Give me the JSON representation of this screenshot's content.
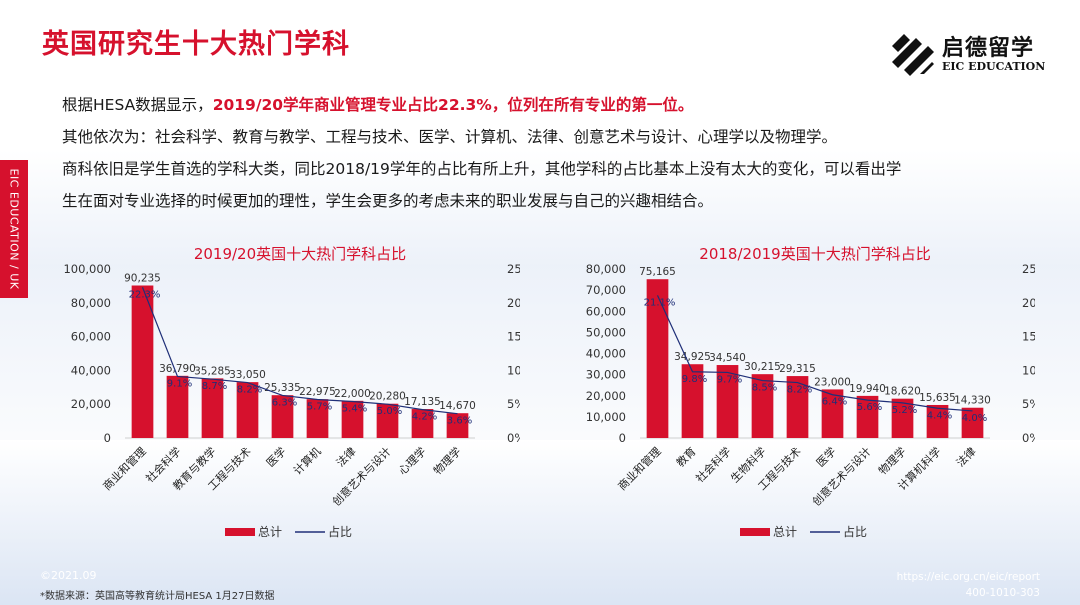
{
  "title": "英国研究生十大热门学科",
  "logo": {
    "cn": "启德留学",
    "en": "EIC EDUCATION"
  },
  "side_label": "EIC EDUCATION / UK",
  "paragraphs": {
    "p1_pre": "根据HESA数据显示，",
    "p1_hl": "2019/20学年商业管理专业占比22.3%，位列在所有专业的第一位。",
    "p2": "其他依次为：社会科学、教育与教学、工程与技术、医学、计算机、法律、创意艺术与设计、心理学以及物理学。",
    "p3": "商科依旧是学生首选的学科大类，同比2018/19学年的占比有所上升，其他学科的占比基本上没有太大的变化，可以看出学",
    "p4": "生在面对专业选择的时候更加的理性，学生会更多的考虑未来的职业发展与自己的兴趣相结合。"
  },
  "chart_data": [
    {
      "type": "bar",
      "title": "2019/20英国十大热门学科占比",
      "categories": [
        "商业和管理",
        "社会科学",
        "教育与教学",
        "工程与技术",
        "医学",
        "计算机",
        "法律",
        "创意艺术与设计",
        "心理学",
        "物理学"
      ],
      "series": [
        {
          "name": "总计",
          "type": "bar",
          "values": [
            90235,
            36790,
            35285,
            33050,
            25335,
            22975,
            22000,
            20280,
            17135,
            14670
          ],
          "labels": [
            "90,235",
            "36,790",
            "35,285",
            "33,050",
            "25,335",
            "22,975",
            "22,000",
            "20,280",
            "17,135",
            "14,670"
          ]
        },
        {
          "name": "占比",
          "type": "line",
          "values": [
            22.3,
            9.1,
            8.7,
            8.2,
            6.3,
            5.7,
            5.4,
            5.0,
            4.2,
            3.6
          ],
          "labels": [
            "22.3%",
            "9.1%",
            "8.7%",
            "8.2%",
            "6.3%",
            "5.7%",
            "5.4%",
            "5.0%",
            "4.2%",
            "3.6%"
          ]
        }
      ],
      "ylim": [
        0,
        100000
      ],
      "y2lim": [
        0,
        25
      ],
      "yticks": [
        "100,000",
        "80,000",
        "60,000",
        "40,000",
        "20,000",
        "0"
      ],
      "y2ticks": [
        "25%",
        "20%",
        "15%",
        "10%",
        "5%",
        "0%"
      ],
      "legend": "bottom",
      "bar_color": "#d6112d",
      "line_color": "#1f2f78"
    },
    {
      "type": "bar",
      "title": "2018/2019英国十大热门学科占比",
      "categories": [
        "商业和管理",
        "教育",
        "社会科学",
        "生物科学",
        "工程与技术",
        "医学",
        "创意艺术与设计",
        "物理学",
        "计算机科学",
        "法律"
      ],
      "series": [
        {
          "name": "总计",
          "type": "bar",
          "values": [
            75165,
            34925,
            34540,
            30215,
            29315,
            23000,
            19940,
            18620,
            15635,
            14330
          ],
          "labels": [
            "75,165",
            "34,925",
            "34,540",
            "30,215",
            "29,315",
            "23,000",
            "19,940",
            "18,620",
            "15,635",
            "14,330"
          ]
        },
        {
          "name": "占比",
          "type": "line",
          "values": [
            21.1,
            9.8,
            9.7,
            8.5,
            8.2,
            6.4,
            5.6,
            5.2,
            4.4,
            4.0
          ],
          "labels": [
            "21.1%",
            "9.8%",
            "9.7%",
            "8.5%",
            "8.2%",
            "6.4%",
            "5.6%",
            "5.2%",
            "4.4%",
            "4.0%"
          ]
        }
      ],
      "ylim": [
        0,
        80000
      ],
      "y2lim": [
        0,
        25
      ],
      "yticks": [
        "80,000",
        "70,000",
        "60,000",
        "50,000",
        "40,000",
        "30,000",
        "20,000",
        "10,000",
        "0"
      ],
      "y2ticks": [
        "25%",
        "20%",
        "15%",
        "10%",
        "5%",
        "0%"
      ],
      "legend": "bottom",
      "bar_color": "#d6112d",
      "line_color": "#1f2f78"
    }
  ],
  "footer": {
    "date": "©2021.09",
    "source": "*数据来源：英国高等教育统计局HESA 1月27日数据",
    "url": "https://eic.org.cn/eic/report",
    "tel": "400-1010-303"
  }
}
